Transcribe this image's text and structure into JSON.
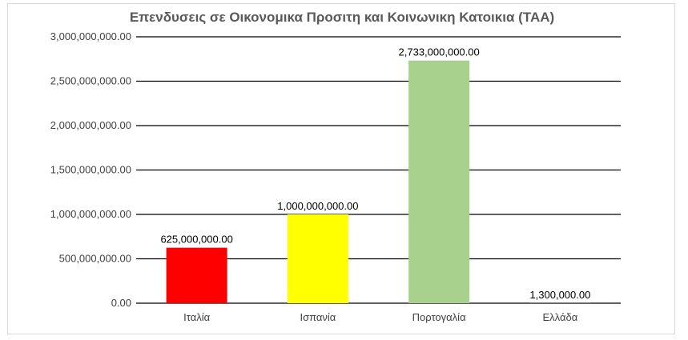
{
  "chart_data": {
    "type": "bar",
    "title": "Επενδυσεις σε Οικονομικα Προσιτη και Κοινωνικη Κατοικια (ΤΑΑ)",
    "xlabel": "",
    "ylabel": "",
    "categories": [
      "Ιταλία",
      "Ισπανία",
      "Πορτογαλία",
      "Ελλάδα"
    ],
    "values": [
      625000000,
      1000000000,
      2733000000,
      1300000
    ],
    "data_labels": [
      "625,000,000.00",
      "1,000,000,000.00",
      "2,733,000,000.00",
      "1,300,000.00"
    ],
    "bar_colors": [
      "#ff0000",
      "#ffff00",
      "#a9d18e",
      "#a9d18e"
    ],
    "ylim": [
      0,
      3000000000
    ],
    "yticks": [
      0,
      500000000,
      1000000000,
      1500000000,
      2000000000,
      2500000000,
      3000000000
    ],
    "ytick_labels": [
      "0.00",
      "500,000,000.00",
      "1,000,000,000.00",
      "1,500,000,000.00",
      "2,000,000,000.00",
      "2,500,000,000.00",
      "3,000,000,000.00"
    ],
    "grid": true,
    "legend": "none"
  }
}
